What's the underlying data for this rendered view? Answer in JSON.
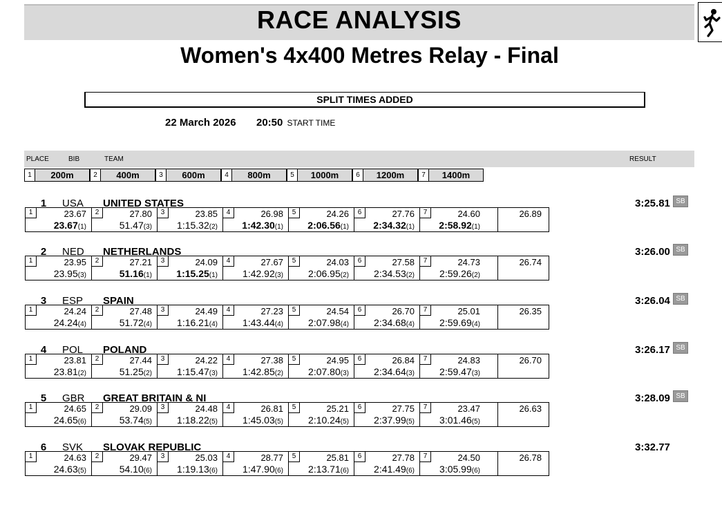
{
  "title": "RACE ANALYSIS",
  "subtitle": "Women's 4x400 Metres Relay - Final",
  "notice": "SPLIT TIMES ADDED",
  "date": "22 March  2026",
  "start_time": "20:50",
  "start_time_label": "START TIME",
  "header": {
    "place": "PLACE",
    "bib": "BIB",
    "team": "TEAM",
    "result": "RESULT"
  },
  "leg_headers": [
    {
      "num": "1",
      "label": "200m"
    },
    {
      "num": "2",
      "label": "400m"
    },
    {
      "num": "3",
      "label": "600m"
    },
    {
      "num": "4",
      "label": "800m"
    },
    {
      "num": "5",
      "label": "1000m"
    },
    {
      "num": "6",
      "label": "1200m"
    },
    {
      "num": "7",
      "label": "1400m"
    }
  ],
  "teams": [
    {
      "place": "1",
      "bib": "USA",
      "name": "UNITED STATES",
      "result": "3:25.81",
      "badge": "SB",
      "final_split": "26.89",
      "splits": [
        {
          "num": "1",
          "split": "23.67",
          "cum": "23.67",
          "rank": "(1)",
          "best": true
        },
        {
          "num": "2",
          "split": "27.80",
          "cum": "51.47",
          "rank": "(3)",
          "best": false
        },
        {
          "num": "3",
          "split": "23.85",
          "cum": "1:15.32",
          "rank": "(2)",
          "best": false
        },
        {
          "num": "4",
          "split": "26.98",
          "cum": "1:42.30",
          "rank": "(1)",
          "best": true
        },
        {
          "num": "5",
          "split": "24.26",
          "cum": "2:06.56",
          "rank": "(1)",
          "best": true
        },
        {
          "num": "6",
          "split": "27.76",
          "cum": "2:34.32",
          "rank": "(1)",
          "best": true
        },
        {
          "num": "7",
          "split": "24.60",
          "cum": "2:58.92",
          "rank": "(1)",
          "best": true
        }
      ]
    },
    {
      "place": "2",
      "bib": "NED",
      "name": "NETHERLANDS",
      "result": "3:26.00",
      "badge": "SB",
      "final_split": "26.74",
      "splits": [
        {
          "num": "1",
          "split": "23.95",
          "cum": "23.95",
          "rank": "(3)",
          "best": false
        },
        {
          "num": "2",
          "split": "27.21",
          "cum": "51.16",
          "rank": "(1)",
          "best": true
        },
        {
          "num": "3",
          "split": "24.09",
          "cum": "1:15.25",
          "rank": "(1)",
          "best": true
        },
        {
          "num": "4",
          "split": "27.67",
          "cum": "1:42.92",
          "rank": "(3)",
          "best": false
        },
        {
          "num": "5",
          "split": "24.03",
          "cum": "2:06.95",
          "rank": "(2)",
          "best": false
        },
        {
          "num": "6",
          "split": "27.58",
          "cum": "2:34.53",
          "rank": "(2)",
          "best": false
        },
        {
          "num": "7",
          "split": "24.73",
          "cum": "2:59.26",
          "rank": "(2)",
          "best": false
        }
      ]
    },
    {
      "place": "3",
      "bib": "ESP",
      "name": "SPAIN",
      "result": "3:26.04",
      "badge": "SB",
      "final_split": "26.35",
      "splits": [
        {
          "num": "1",
          "split": "24.24",
          "cum": "24.24",
          "rank": "(4)",
          "best": false
        },
        {
          "num": "2",
          "split": "27.48",
          "cum": "51.72",
          "rank": "(4)",
          "best": false
        },
        {
          "num": "3",
          "split": "24.49",
          "cum": "1:16.21",
          "rank": "(4)",
          "best": false
        },
        {
          "num": "4",
          "split": "27.23",
          "cum": "1:43.44",
          "rank": "(4)",
          "best": false
        },
        {
          "num": "5",
          "split": "24.54",
          "cum": "2:07.98",
          "rank": "(4)",
          "best": false
        },
        {
          "num": "6",
          "split": "26.70",
          "cum": "2:34.68",
          "rank": "(4)",
          "best": false
        },
        {
          "num": "7",
          "split": "25.01",
          "cum": "2:59.69",
          "rank": "(4)",
          "best": false
        }
      ]
    },
    {
      "place": "4",
      "bib": "POL",
      "name": "POLAND",
      "result": "3:26.17",
      "badge": "SB",
      "final_split": "26.70",
      "splits": [
        {
          "num": "1",
          "split": "23.81",
          "cum": "23.81",
          "rank": "(2)",
          "best": false
        },
        {
          "num": "2",
          "split": "27.44",
          "cum": "51.25",
          "rank": "(2)",
          "best": false
        },
        {
          "num": "3",
          "split": "24.22",
          "cum": "1:15.47",
          "rank": "(3)",
          "best": false
        },
        {
          "num": "4",
          "split": "27.38",
          "cum": "1:42.85",
          "rank": "(2)",
          "best": false
        },
        {
          "num": "5",
          "split": "24.95",
          "cum": "2:07.80",
          "rank": "(3)",
          "best": false
        },
        {
          "num": "6",
          "split": "26.84",
          "cum": "2:34.64",
          "rank": "(3)",
          "best": false
        },
        {
          "num": "7",
          "split": "24.83",
          "cum": "2:59.47",
          "rank": "(3)",
          "best": false
        }
      ]
    },
    {
      "place": "5",
      "bib": "GBR",
      "name": "GREAT BRITAIN & NI",
      "result": "3:28.09",
      "badge": "SB",
      "final_split": "26.63",
      "splits": [
        {
          "num": "1",
          "split": "24.65",
          "cum": "24.65",
          "rank": "(6)",
          "best": false
        },
        {
          "num": "2",
          "split": "29.09",
          "cum": "53.74",
          "rank": "(5)",
          "best": false
        },
        {
          "num": "3",
          "split": "24.48",
          "cum": "1:18.22",
          "rank": "(5)",
          "best": false
        },
        {
          "num": "4",
          "split": "26.81",
          "cum": "1:45.03",
          "rank": "(5)",
          "best": false
        },
        {
          "num": "5",
          "split": "25.21",
          "cum": "2:10.24",
          "rank": "(5)",
          "best": false
        },
        {
          "num": "6",
          "split": "27.75",
          "cum": "2:37.99",
          "rank": "(5)",
          "best": false
        },
        {
          "num": "7",
          "split": "23.47",
          "cum": "3:01.46",
          "rank": "(5)",
          "best": false
        }
      ]
    },
    {
      "place": "6",
      "bib": "SVK",
      "name": "SLOVAK REPUBLIC",
      "result": "3:32.77",
      "badge": "",
      "final_split": "26.78",
      "splits": [
        {
          "num": "1",
          "split": "24.63",
          "cum": "24.63",
          "rank": "(5)",
          "best": false
        },
        {
          "num": "2",
          "split": "29.47",
          "cum": "54.10",
          "rank": "(6)",
          "best": false
        },
        {
          "num": "3",
          "split": "25.03",
          "cum": "1:19.13",
          "rank": "(6)",
          "best": false
        },
        {
          "num": "4",
          "split": "28.77",
          "cum": "1:47.90",
          "rank": "(6)",
          "best": false
        },
        {
          "num": "5",
          "split": "25.81",
          "cum": "2:13.71",
          "rank": "(6)",
          "best": false
        },
        {
          "num": "6",
          "split": "27.78",
          "cum": "2:41.49",
          "rank": "(6)",
          "best": false
        },
        {
          "num": "7",
          "split": "24.50",
          "cum": "3:05.99",
          "rank": "(6)",
          "best": false
        }
      ]
    }
  ]
}
